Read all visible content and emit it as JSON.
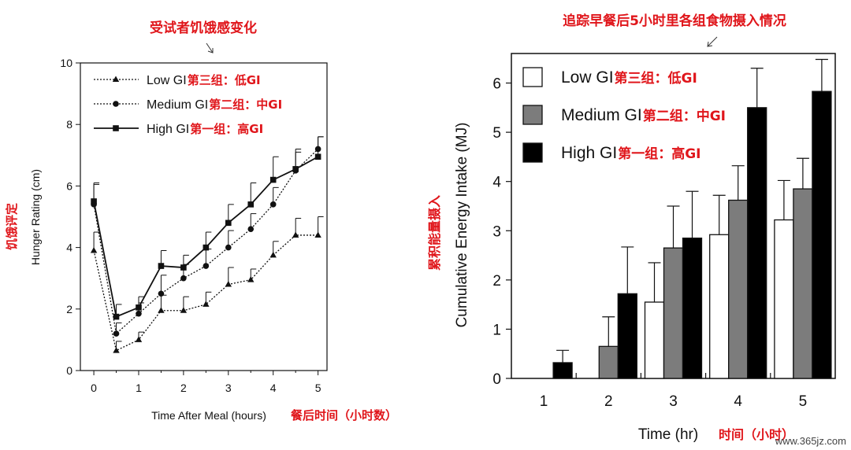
{
  "chart_data": [
    {
      "type": "line",
      "title": "",
      "annotation_title": "受试者饥饿感变化",
      "xlabel": "Time After Meal (hours)",
      "xlabel_cn": "餐后时间（小时数）",
      "ylabel": "Hunger Rating (cm)",
      "ylabel_cn": "饥饿评定",
      "xlim": [
        -0.3,
        5.2
      ],
      "ylim": [
        0,
        10
      ],
      "xticks": [
        0,
        1,
        2,
        3,
        4,
        5
      ],
      "yticks": [
        0,
        2,
        4,
        6,
        8,
        10
      ],
      "legend_position": "top-left",
      "x": [
        0,
        0.5,
        1,
        1.5,
        2,
        2.5,
        3,
        3.5,
        4,
        4.5,
        5
      ],
      "series": [
        {
          "name": "Low  GI",
          "name_cn": "第三组：低GI",
          "style": "dotted",
          "marker": "triangle",
          "values": [
            3.9,
            0.65,
            1.0,
            1.95,
            1.95,
            2.15,
            2.8,
            2.95,
            3.75,
            4.4,
            4.4
          ],
          "errors": [
            0.6,
            0.3,
            0.25,
            0.5,
            0.45,
            0.4,
            0.55,
            0.35,
            0.45,
            0.55,
            0.6
          ]
        },
        {
          "name": "Medium  GI",
          "name_cn": "第二组：中GI",
          "style": "dotted",
          "marker": "circle",
          "values": [
            5.4,
            1.2,
            1.85,
            2.5,
            3.0,
            3.4,
            4.0,
            4.6,
            5.4,
            6.5,
            7.2
          ],
          "errors": [
            0.65,
            0.35,
            0.35,
            0.6,
            0.45,
            0.55,
            0.55,
            0.5,
            0.55,
            0.6,
            0.4
          ]
        },
        {
          "name": "High  GI",
          "name_cn": "第一组：高GI",
          "style": "solid",
          "marker": "square",
          "values": [
            5.5,
            1.75,
            2.05,
            3.4,
            3.35,
            4.0,
            4.8,
            5.4,
            6.2,
            6.55,
            6.95
          ],
          "errors": [
            0.6,
            0.4,
            0.35,
            0.5,
            0.4,
            0.5,
            0.6,
            0.7,
            0.75,
            0.65,
            0.65
          ]
        }
      ]
    },
    {
      "type": "bar",
      "title": "",
      "annotation_title": "追踪早餐后5小时里各组食物摄入情况",
      "xlabel": "Time (hr)",
      "xlabel_cn": "时间（小时）",
      "ylabel": "Cumulative Energy Intake (MJ)",
      "ylabel_cn": "累积能量摄入",
      "ylim": [
        0,
        6.6
      ],
      "yticks": [
        0,
        1,
        2,
        3,
        4,
        5,
        6
      ],
      "categories": [
        "1",
        "2",
        "3",
        "4",
        "5"
      ],
      "legend_position": "top-left",
      "series": [
        {
          "name": "Low  GI",
          "name_cn": "第三组：低GI",
          "fill": "#ffffff",
          "values": [
            0,
            0,
            1.55,
            2.92,
            3.22
          ],
          "errors": [
            0,
            0,
            0.8,
            0.8,
            0.8
          ]
        },
        {
          "name": "Medium  GI",
          "name_cn": "第二组：中GI",
          "fill": "#7c7c7c",
          "values": [
            0,
            0.65,
            2.65,
            3.62,
            3.85
          ],
          "errors": [
            0,
            0.6,
            0.85,
            0.7,
            0.62
          ]
        },
        {
          "name": "High  GI",
          "name_cn": "第一组：高GI",
          "fill": "#000000",
          "values": [
            0.32,
            1.72,
            2.85,
            5.5,
            5.83
          ],
          "errors": [
            0.25,
            0.95,
            0.95,
            0.8,
            0.65
          ]
        }
      ]
    }
  ],
  "watermark": "www.365jz.com"
}
